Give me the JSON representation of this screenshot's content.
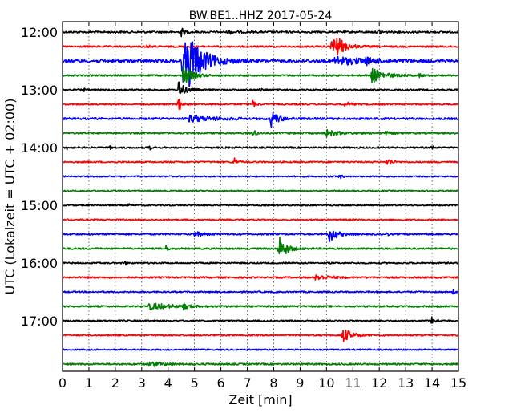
{
  "chart_data": {
    "type": "line",
    "title": "BW.BE1..HHZ 2017-05-24",
    "xlabel": "Zeit  [min]",
    "ylabel": "UTC (Lokalzeit = UTC + 02:00)",
    "xlim": [
      0,
      15
    ],
    "x_ticks": [
      0,
      1,
      2,
      3,
      4,
      5,
      6,
      7,
      8,
      9,
      10,
      11,
      12,
      13,
      14,
      15
    ],
    "x_tick_labels": [
      "0",
      "1",
      "2",
      "3",
      "4",
      "5",
      "6",
      "7",
      "8",
      "9",
      "10",
      "11",
      "12",
      "13",
      "14",
      "15"
    ],
    "y_tick_labels": [
      "12:00",
      "13:00",
      "14:00",
      "15:00",
      "16:00",
      "17:00"
    ],
    "grid": "vertical dotted",
    "trace_colors": [
      "#000000",
      "#ff0000",
      "#0000ff",
      "#008000"
    ],
    "traces": [
      {
        "start": "12:00",
        "noise": 1.2,
        "events": [
          [
            4.5,
            6,
            0.1
          ],
          [
            6.3,
            3,
            0.15
          ],
          [
            12.0,
            3,
            0.08
          ]
        ]
      },
      {
        "start": "12:15",
        "noise": 1.0,
        "events": [
          [
            3.2,
            3,
            0.08
          ],
          [
            6.1,
            2,
            0.05
          ],
          [
            10.2,
            12,
            0.35
          ],
          [
            10.4,
            5,
            0.3
          ]
        ]
      },
      {
        "start": "12:30",
        "noise": 1.8,
        "events": [
          [
            4.55,
            28,
            0.4
          ],
          [
            4.8,
            18,
            0.6
          ],
          [
            10.3,
            6,
            0.8
          ],
          [
            11.5,
            3,
            0.3
          ]
        ]
      },
      {
        "start": "12:45",
        "noise": 1.0,
        "events": [
          [
            4.55,
            14,
            0.3
          ],
          [
            11.7,
            10,
            0.4
          ],
          [
            13.5,
            2,
            0.1
          ]
        ]
      },
      {
        "start": "13:00",
        "noise": 1.0,
        "events": [
          [
            4.4,
            12,
            0.2
          ],
          [
            0.8,
            2,
            0.05
          ],
          [
            7.5,
            2,
            0.1
          ]
        ]
      },
      {
        "start": "13:15",
        "noise": 0.9,
        "events": [
          [
            4.4,
            10,
            0.1
          ],
          [
            7.2,
            5,
            0.1
          ],
          [
            10.7,
            3,
            0.2
          ]
        ]
      },
      {
        "start": "13:30",
        "noise": 1.2,
        "events": [
          [
            4.8,
            4,
            0.8
          ],
          [
            7.9,
            10,
            0.25
          ]
        ]
      },
      {
        "start": "13:45",
        "noise": 1.0,
        "events": [
          [
            7.2,
            6,
            0.1
          ],
          [
            10.0,
            4,
            0.4
          ],
          [
            12.2,
            2,
            0.2
          ]
        ]
      },
      {
        "start": "14:00",
        "noise": 1.0,
        "events": [
          [
            0.2,
            5,
            0.05
          ],
          [
            1.8,
            3,
            0.05
          ],
          [
            3.3,
            3,
            0.05
          ],
          [
            14.0,
            3,
            0.05
          ]
        ]
      },
      {
        "start": "14:15",
        "noise": 0.9,
        "events": [
          [
            6.5,
            6,
            0.1
          ],
          [
            12.3,
            5,
            0.15
          ]
        ]
      },
      {
        "start": "14:30",
        "noise": 0.8,
        "events": [
          [
            10.5,
            3,
            0.1
          ]
        ]
      },
      {
        "start": "14:45",
        "noise": 0.8,
        "events": []
      },
      {
        "start": "15:00",
        "noise": 0.8,
        "events": [
          [
            2.5,
            2,
            0.05
          ]
        ]
      },
      {
        "start": "15:15",
        "noise": 0.8,
        "events": []
      },
      {
        "start": "15:30",
        "noise": 1.0,
        "events": [
          [
            5.0,
            3,
            0.3
          ],
          [
            10.1,
            10,
            0.25
          ],
          [
            12.3,
            2,
            0.05
          ]
        ]
      },
      {
        "start": "15:45",
        "noise": 1.0,
        "events": [
          [
            3.9,
            4,
            0.1
          ],
          [
            8.2,
            16,
            0.25
          ]
        ]
      },
      {
        "start": "16:00",
        "noise": 0.9,
        "events": [
          [
            2.4,
            2,
            0.05
          ]
        ]
      },
      {
        "start": "16:15",
        "noise": 1.0,
        "events": [
          [
            9.6,
            4,
            0.4
          ]
        ]
      },
      {
        "start": "16:30",
        "noise": 0.9,
        "events": [
          [
            14.8,
            4,
            0.05
          ]
        ]
      },
      {
        "start": "16:45",
        "noise": 1.0,
        "events": [
          [
            3.3,
            4,
            0.8
          ],
          [
            4.6,
            4,
            0.1
          ]
        ]
      },
      {
        "start": "17:00",
        "noise": 0.9,
        "events": [
          [
            14.0,
            5,
            0.15
          ]
        ]
      },
      {
        "start": "17:15",
        "noise": 0.9,
        "events": [
          [
            10.6,
            10,
            0.3
          ]
        ]
      },
      {
        "start": "17:30",
        "noise": 0.8,
        "events": []
      },
      {
        "start": "17:45",
        "noise": 1.0,
        "events": [
          [
            3.3,
            3,
            0.5
          ]
        ]
      }
    ]
  }
}
